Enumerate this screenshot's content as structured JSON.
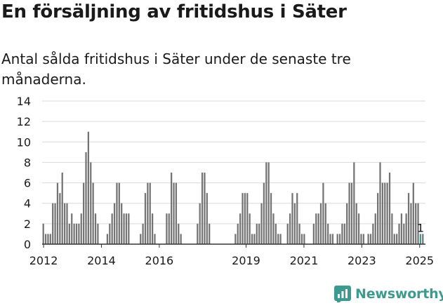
{
  "page": {
    "title": "En försäljning av fritidshus i Säter",
    "subtitle": "Antal sålda fritidshus i Säter under de senaste tre månaderna.",
    "brand": "Newsworthy"
  },
  "colors": {
    "bar": "#737373",
    "highlight": "#3d9a8f",
    "grid": "#d9d9d9",
    "axis": "#333333",
    "text": "#1a1a1a"
  },
  "chart_data": {
    "type": "bar",
    "title": "En försäljning av fritidshus i Säter",
    "subtitle": "Antal sålda fritidshus i Säter under de senaste tre månaderna.",
    "xlabel": "",
    "ylabel": "",
    "ylim": [
      0,
      14
    ],
    "yticks": [
      0,
      2,
      4,
      6,
      8,
      10,
      12,
      14
    ],
    "xticks": [
      {
        "label": "2012",
        "value": 2012
      },
      {
        "label": "2014",
        "value": 2014
      },
      {
        "label": "2016",
        "value": 2016
      },
      {
        "label": "2019",
        "value": 2019
      },
      {
        "label": "2021",
        "value": 2021
      },
      {
        "label": "2023",
        "value": 2023
      },
      {
        "label": "2025",
        "value": 2025
      }
    ],
    "x_start": 2011.95,
    "x_end": 2025.2,
    "grid": true,
    "annotation": {
      "text": "1",
      "index": 159
    },
    "values": [
      2,
      1,
      1,
      1,
      4,
      4,
      6,
      5,
      7,
      4,
      4,
      2,
      3,
      2,
      2,
      2,
      3,
      6,
      9,
      11,
      8,
      6,
      3,
      2,
      0,
      0,
      0,
      1,
      2,
      3,
      4,
      6,
      6,
      4,
      3,
      3,
      3,
      0,
      0,
      0,
      0,
      1,
      2,
      5,
      6,
      6,
      3,
      1,
      0,
      0,
      0,
      0,
      3,
      3,
      7,
      6,
      6,
      2,
      1,
      0,
      0,
      0,
      0,
      0,
      0,
      2,
      4,
      7,
      7,
      5,
      2,
      0,
      0,
      0,
      0,
      0,
      0,
      0,
      0,
      0,
      0,
      1,
      2,
      3,
      5,
      5,
      5,
      3,
      1,
      1,
      2,
      2,
      4,
      6,
      8,
      8,
      5,
      3,
      2,
      1,
      1,
      0,
      0,
      2,
      3,
      5,
      4,
      5,
      2,
      1,
      1,
      0,
      0,
      0,
      2,
      3,
      3,
      4,
      6,
      4,
      2,
      1,
      1,
      0,
      1,
      1,
      2,
      2,
      4,
      6,
      6,
      8,
      4,
      3,
      1,
      1,
      0,
      1,
      1,
      2,
      3,
      5,
      8,
      6,
      6,
      6,
      7,
      3,
      1,
      1,
      2,
      3,
      2,
      3,
      5,
      4,
      6,
      4,
      4,
      1,
      1
    ]
  }
}
